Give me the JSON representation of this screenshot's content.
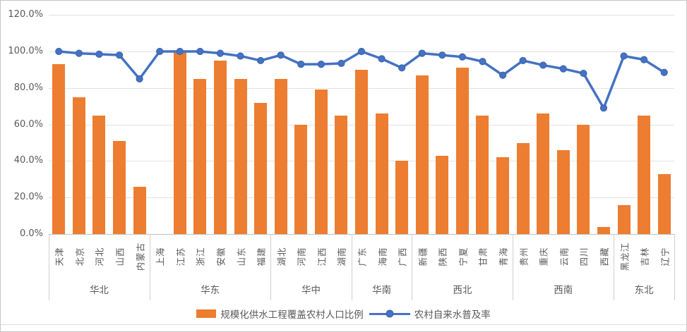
{
  "chart_data": {
    "type": "bar",
    "subtype": "combo-bar-line",
    "title": "",
    "y_axis": {
      "min": 0,
      "max": 120,
      "step": 20,
      "tick_labels": [
        "0.0%",
        "20.0%",
        "40.0%",
        "60.0%",
        "80.0%",
        "100.0%",
        "120.0%"
      ]
    },
    "groups": [
      {
        "label": "华北",
        "items": [
          "天津",
          "北京",
          "河北",
          "山西",
          "内蒙古"
        ]
      },
      {
        "label": "华东",
        "items": [
          "上海",
          "江苏",
          "浙江",
          "安徽",
          "山东",
          "福建"
        ]
      },
      {
        "label": "华中",
        "items": [
          "湖北",
          "河南",
          "江西",
          "湖南"
        ]
      },
      {
        "label": "华南",
        "items": [
          "广东",
          "海南",
          "广西"
        ]
      },
      {
        "label": "西北",
        "items": [
          "新疆",
          "陕西",
          "宁夏",
          "甘肃",
          "青海"
        ]
      },
      {
        "label": "西南",
        "items": [
          "贵州",
          "重庆",
          "云南",
          "四川",
          "西藏"
        ]
      },
      {
        "label": "东北",
        "items": [
          "黑龙江",
          "吉林",
          "辽宁"
        ]
      }
    ],
    "categories": [
      "天津",
      "北京",
      "河北",
      "山西",
      "内蒙古",
      "上海",
      "江苏",
      "浙江",
      "安徽",
      "山东",
      "福建",
      "湖北",
      "河南",
      "江西",
      "湖南",
      "广东",
      "海南",
      "广西",
      "新疆",
      "陕西",
      "宁夏",
      "甘肃",
      "青海",
      "贵州",
      "重庆",
      "云南",
      "四川",
      "西藏",
      "黑龙江",
      "吉林",
      "辽宁"
    ],
    "series": [
      {
        "name": "规模化供水工程覆盖农村人口比例",
        "type": "bar",
        "color": "#ED7D31",
        "values": [
          93,
          75,
          65,
          51,
          26,
          null,
          100,
          85,
          95,
          85,
          72,
          85,
          60,
          79,
          65,
          90,
          66,
          40,
          87,
          43,
          91,
          65,
          42,
          50,
          66,
          46,
          60,
          4,
          16,
          65,
          33
        ]
      },
      {
        "name": "农村自来水普及率",
        "type": "line",
        "color": "#4472C4",
        "values": [
          100,
          99,
          98.5,
          98,
          85,
          100,
          100,
          100,
          99,
          97.5,
          95,
          98,
          93,
          93,
          93.5,
          100,
          96,
          91,
          99,
          98,
          97,
          94.5,
          87,
          95,
          92.5,
          90.5,
          88,
          69,
          97.5,
          95.5,
          88.5
        ]
      }
    ],
    "legend": {
      "position": "bottom",
      "entries": [
        "规模化供水工程覆盖农村人口比例",
        "农村自来水普及率"
      ]
    },
    "grid": true
  }
}
